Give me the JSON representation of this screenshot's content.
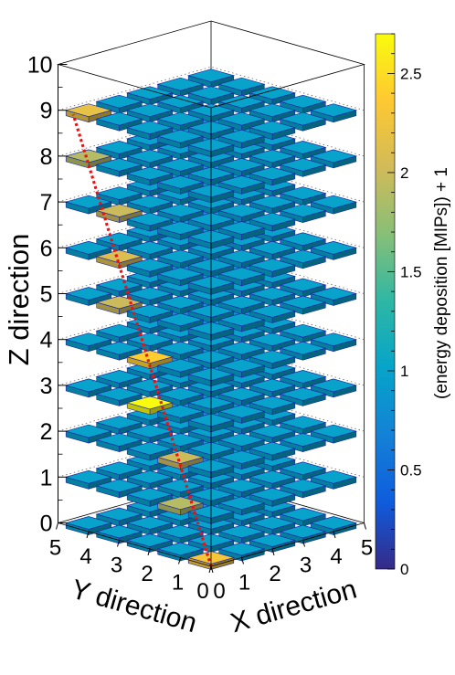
{
  "chart_data": {
    "type": "lego3d",
    "grid_size": {
      "x": 5,
      "y": 5
    },
    "x_ticks": [
      "0",
      "1",
      "2",
      "3",
      "4",
      "5"
    ],
    "y_ticks": [
      "0",
      "1",
      "2",
      "3",
      "4",
      "5"
    ],
    "z_ticks": [
      "0",
      "1",
      "2",
      "3",
      "4",
      "5",
      "6",
      "7",
      "8",
      "9",
      "10"
    ],
    "xlabel": "X direction",
    "ylabel": "Y direction",
    "zlabel": "Z direction",
    "zlim": [
      0,
      10
    ],
    "layers": [
      0,
      1,
      2,
      3,
      4,
      5,
      6,
      7,
      8,
      9
    ],
    "baseline_value": 1,
    "hits": [
      {
        "x": 0,
        "y": 0,
        "z": 0,
        "value": 2.3
      },
      {
        "x": 0,
        "y": 1,
        "z": 1,
        "value": 1.9
      },
      {
        "x": 0,
        "y": 1,
        "z": 2,
        "value": 2.0
      },
      {
        "x": 0,
        "y": 2,
        "z": 3,
        "value": 2.7
      },
      {
        "x": 0,
        "y": 2,
        "z": 4,
        "value": 2.4
      },
      {
        "x": 0,
        "y": 3,
        "z": 5,
        "value": 2.0
      },
      {
        "x": 0,
        "y": 3,
        "z": 6,
        "value": 2.1
      },
      {
        "x": 0,
        "y": 3,
        "z": 7,
        "value": 2.0
      },
      {
        "x": 0,
        "y": 4,
        "z": 8,
        "value": 1.9
      },
      {
        "x": 0,
        "y": 4,
        "z": 9,
        "value": 2.2
      }
    ],
    "track": {
      "start": [
        0,
        0,
        0
      ],
      "end": [
        0,
        4.5,
        9
      ],
      "color": "#ee1111"
    },
    "colorbar": {
      "label": "(energy deposition [MIPs]) + 1",
      "range": [
        0,
        2.7
      ],
      "ticks": [
        "0",
        "0.5",
        "1",
        "1.5",
        "2",
        "2.5"
      ],
      "tick_values": [
        0,
        0.5,
        1,
        1.5,
        2,
        2.5
      ],
      "palette": [
        "#352a87",
        "#0f5cdd",
        "#1481d6",
        "#06a4ca",
        "#2eb7a4",
        "#87bf77",
        "#d1bb59",
        "#fec832",
        "#f9fb0e"
      ]
    }
  }
}
